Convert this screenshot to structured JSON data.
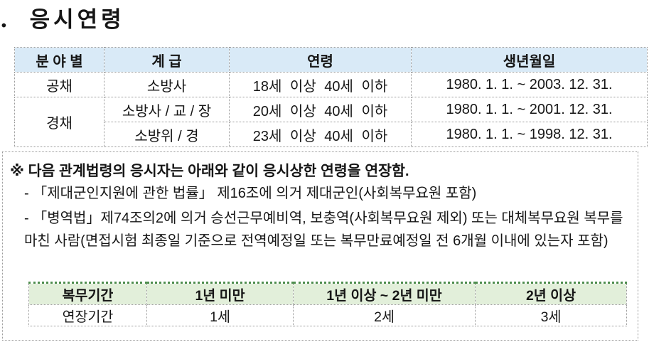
{
  "page": {
    "title": ". 응시연령"
  },
  "colors": {
    "age_table_header_bg": "#D9EAF7",
    "extension_table_header_bg": "#E2EFDA",
    "extension_table_top_border": "#4E8D4E",
    "table_border": "#9A9A9A",
    "text": "#161616"
  },
  "age_table": {
    "headers": [
      "분 야 별",
      "계 급",
      "연령",
      "생년월일"
    ],
    "rows": [
      {
        "category": "공채",
        "rank": "소방사",
        "age": "18세 이상 40세 이하",
        "birth": "1980. 1. 1. ~ 2003. 12. 31."
      },
      {
        "category": "경채",
        "rank": "소방사 / 교 / 장",
        "age": "20세 이상 40세 이하",
        "birth": "1980. 1. 1. ~ 2001. 12. 31."
      },
      {
        "category": "경채",
        "rank": "소방위 / 경",
        "age": "23세 이상 40세 이하",
        "birth": "1980. 1. 1. ~ 1998. 12. 31."
      }
    ]
  },
  "note": {
    "heading": "※ 다음 관계법령의 응시자는 아래와 같이 응시상한 연령을 연장함.",
    "bullets": [
      "- 「제대군인지원에 관한 법률」 제16조에 의거 제대군인(사회복무요원 포함)",
      "- 「병역법」제74조의2에 의거 승선근무예비역, 보충역(사회복무요원 제외) 또는 대체복무요원 복무를 마친 사람(면접시험 최종일 기준으로 전역예정일 또는 복무만료예정일 전 6개월 이내에 있는자 포함)"
    ]
  },
  "extension_table": {
    "headers": [
      "복무기간",
      "1년 미만",
      "1년 이상 ~ 2년 미만",
      "2년 이상"
    ],
    "row_label": "연장기간",
    "values": [
      "1세",
      "2세",
      "3세"
    ]
  }
}
